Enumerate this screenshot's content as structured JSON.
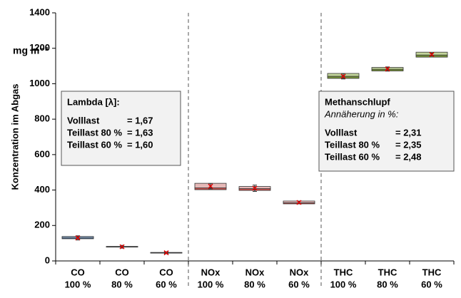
{
  "chart_data": {
    "type": "box",
    "y_label": "Konzentration im Abgas",
    "unit_label": "mg m⁻³",
    "categories": [
      "CO",
      "CO",
      "CO",
      "NOx",
      "NOx",
      "NOx",
      "THC",
      "THC",
      "THC"
    ],
    "category_loads": [
      "100 %",
      "80 %",
      "60 %",
      "100 %",
      "80 %",
      "60 %",
      "100 %",
      "80 %",
      "60 %"
    ],
    "ylim": [
      0,
      1400
    ],
    "yticks": [
      0,
      200,
      400,
      600,
      800,
      1000,
      1200,
      1400
    ],
    "boxes": [
      {
        "q1": 125,
        "median": 130,
        "q3": 138,
        "mean": 130,
        "error": 12,
        "color": "#4f81bd",
        "color_light": "#95b3d7"
      },
      {
        "q1": 78,
        "median": 80,
        "q3": 82,
        "mean": 80,
        "error": 8,
        "color": "#4f81bd",
        "color_light": "#95b3d7"
      },
      {
        "q1": 44,
        "median": 46,
        "q3": 48,
        "mean": 46,
        "error": 6,
        "color": "#4f81bd",
        "color_light": "#95b3d7"
      },
      {
        "q1": 402,
        "median": 412,
        "q3": 438,
        "mean": 422,
        "error": 15,
        "color": "#c0504d",
        "color_light": "#e6b9b8"
      },
      {
        "q1": 398,
        "median": 408,
        "q3": 420,
        "mean": 410,
        "error": 18,
        "color": "#c0504d",
        "color_light": "#e6b9b8"
      },
      {
        "q1": 322,
        "median": 328,
        "q3": 338,
        "mean": 330,
        "error": 8,
        "color": "#c0504d",
        "color_light": "#e6b9b8"
      },
      {
        "q1": 1030,
        "median": 1042,
        "q3": 1058,
        "mean": 1042,
        "error": 15,
        "color": "#77933c",
        "color_light": "#c3d69b"
      },
      {
        "q1": 1072,
        "median": 1082,
        "q3": 1092,
        "mean": 1083,
        "error": 12,
        "color": "#77933c",
        "color_light": "#c3d69b"
      },
      {
        "q1": 1150,
        "median": 1162,
        "q3": 1178,
        "mean": 1165,
        "error": 8,
        "color": "#77933c",
        "color_light": "#c3d69b"
      }
    ],
    "annotations": [
      {
        "title": "Lambda [λ]:",
        "rows": [
          [
            "Volllast",
            "= 1,67"
          ],
          [
            "Teillast 80 %",
            "= 1,63"
          ],
          [
            "Teillast 60 %",
            "= 1,60"
          ]
        ]
      },
      {
        "title": "Methanschlupf",
        "subtitle": "Annäherung in %:",
        "rows": [
          [
            "Volllast",
            "= 2,31"
          ],
          [
            "Teillast 80 %",
            "= 2,35"
          ],
          [
            "Teillast 60 %",
            "= 2,48"
          ]
        ]
      }
    ]
  }
}
